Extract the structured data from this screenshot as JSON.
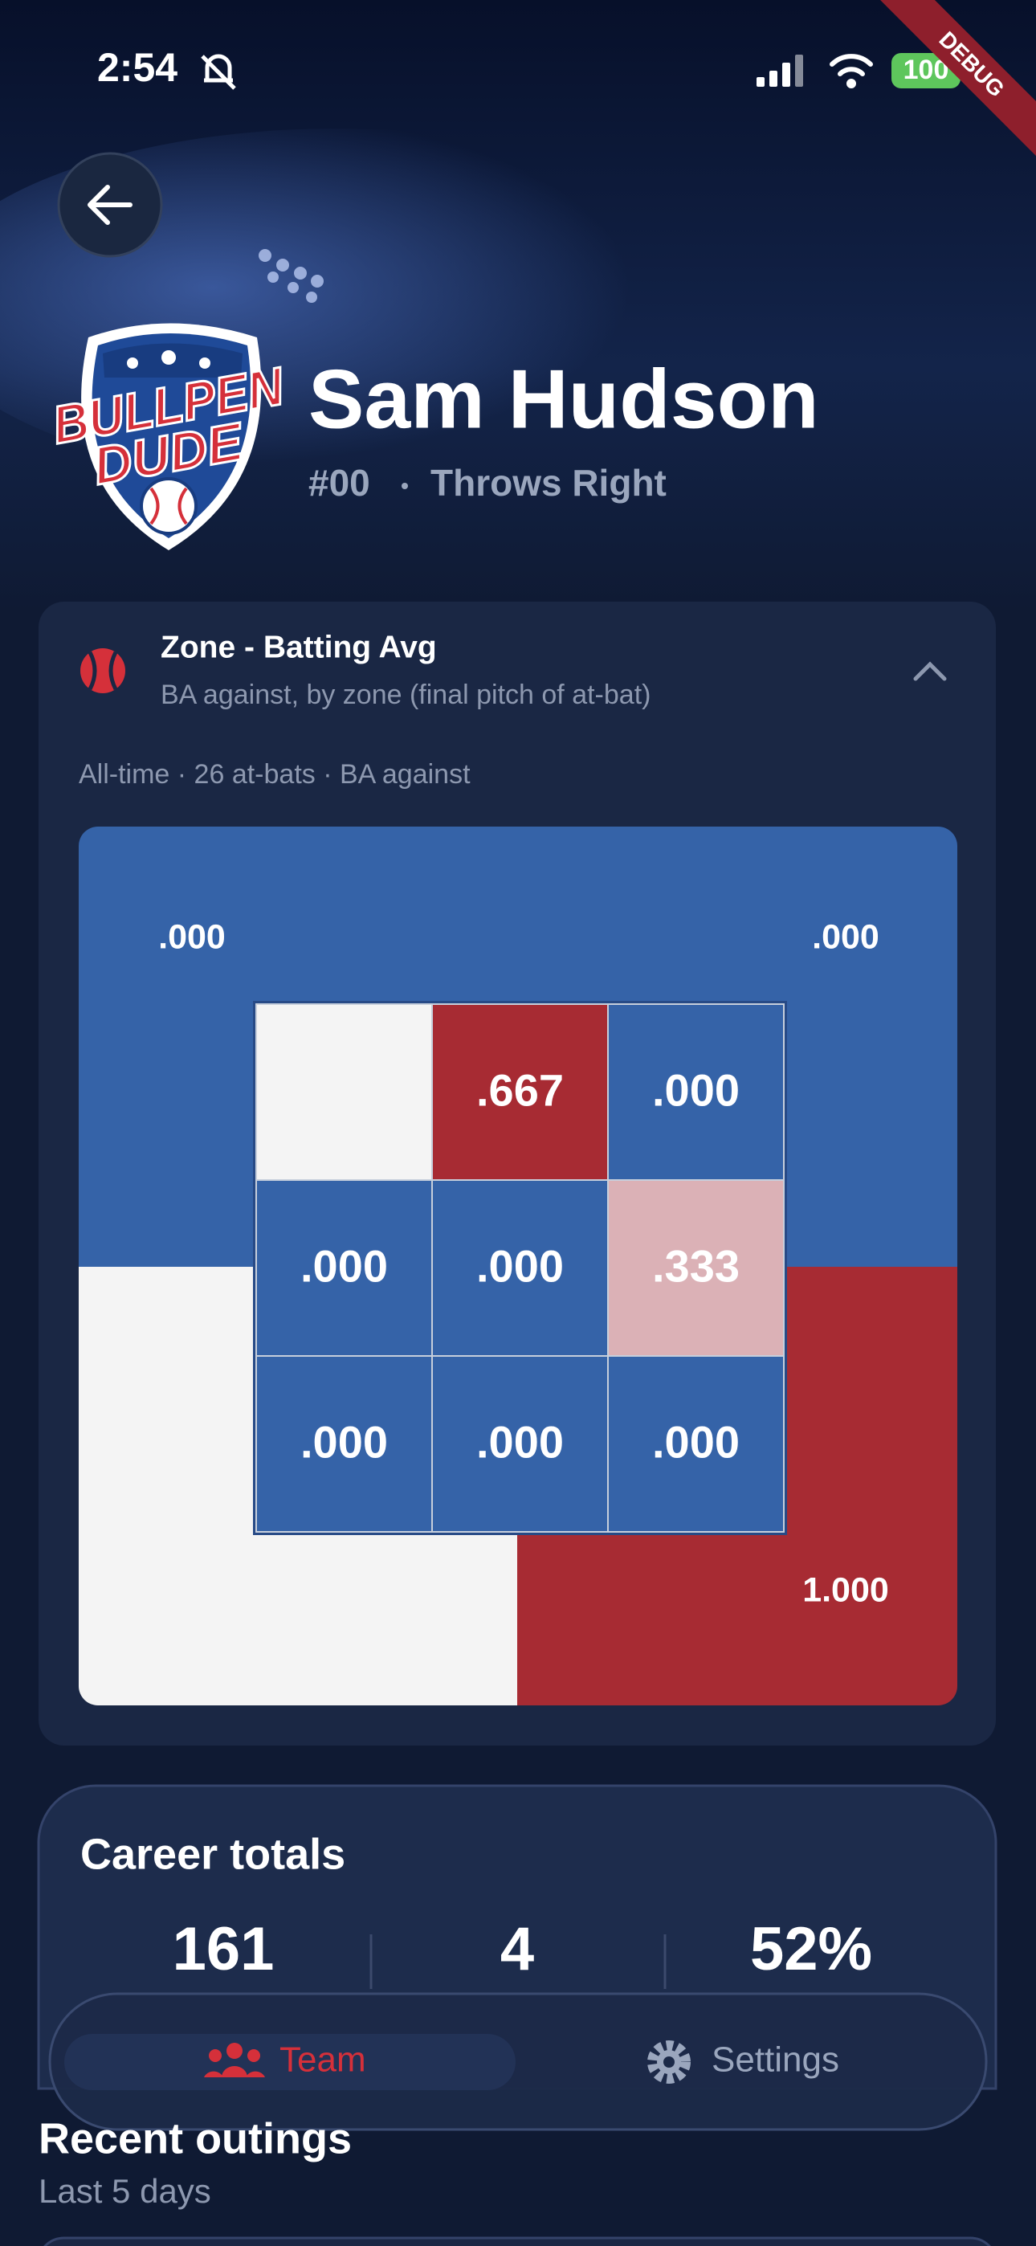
{
  "status_bar": {
    "time": "2:54",
    "battery": "100"
  },
  "debug_banner": "DEBUG",
  "header": {
    "logo": {
      "line1": "BULLPEN",
      "line2": "DUDE"
    },
    "name": "Sam Hudson",
    "number": "#00",
    "throws": "Throws Right"
  },
  "zone_card": {
    "title": "Zone - Batting Avg",
    "subtitle": "BA against, by zone (final pitch of at-bat)",
    "meta": "All-time · 26 at-bats · BA against",
    "outer": {
      "top_left": ".000",
      "top_right": ".000",
      "bottom_right": "1.000"
    },
    "grid": [
      [
        null,
        ".667",
        ".000"
      ],
      [
        ".000",
        ".000",
        ".333"
      ],
      [
        ".000",
        ".000",
        ".000"
      ]
    ]
  },
  "career_totals": {
    "title": "Career totals",
    "values": [
      "161",
      "4",
      "52%"
    ]
  },
  "nav": {
    "team": "Team",
    "settings": "Settings"
  },
  "recent_outings": {
    "title": "Recent outings",
    "subtitle": "Last 5 days"
  }
}
